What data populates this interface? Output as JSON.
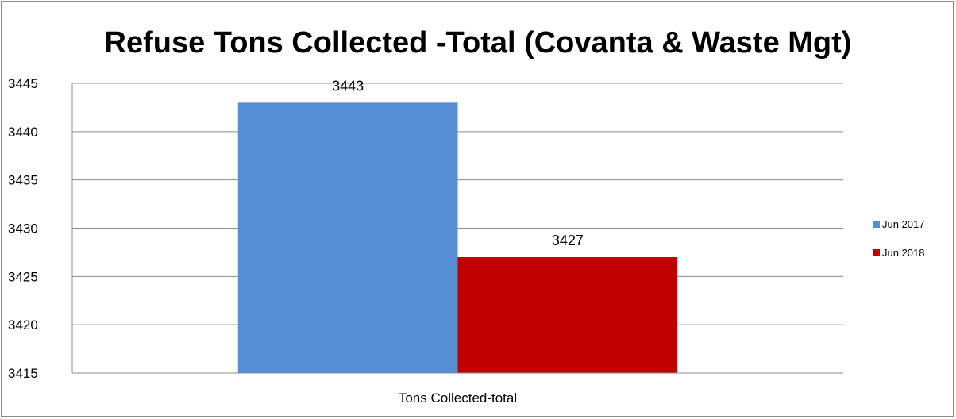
{
  "chart_data": {
    "type": "bar",
    "title": "Refuse Tons Collected -Total (Covanta & Waste Mgt)",
    "categories": [
      "Tons Collected-total"
    ],
    "series": [
      {
        "name": "Jun 2017",
        "values": [
          3443
        ],
        "color": "#558ed5"
      },
      {
        "name": "Jun 2018",
        "values": [
          3427
        ],
        "color": "#c00000"
      }
    ],
    "ylim": [
      3415,
      3445
    ],
    "yticks": [
      3415,
      3420,
      3425,
      3430,
      3435,
      3440,
      3445
    ],
    "grid": true,
    "legend": "right",
    "xlabel": "",
    "ylabel": ""
  }
}
